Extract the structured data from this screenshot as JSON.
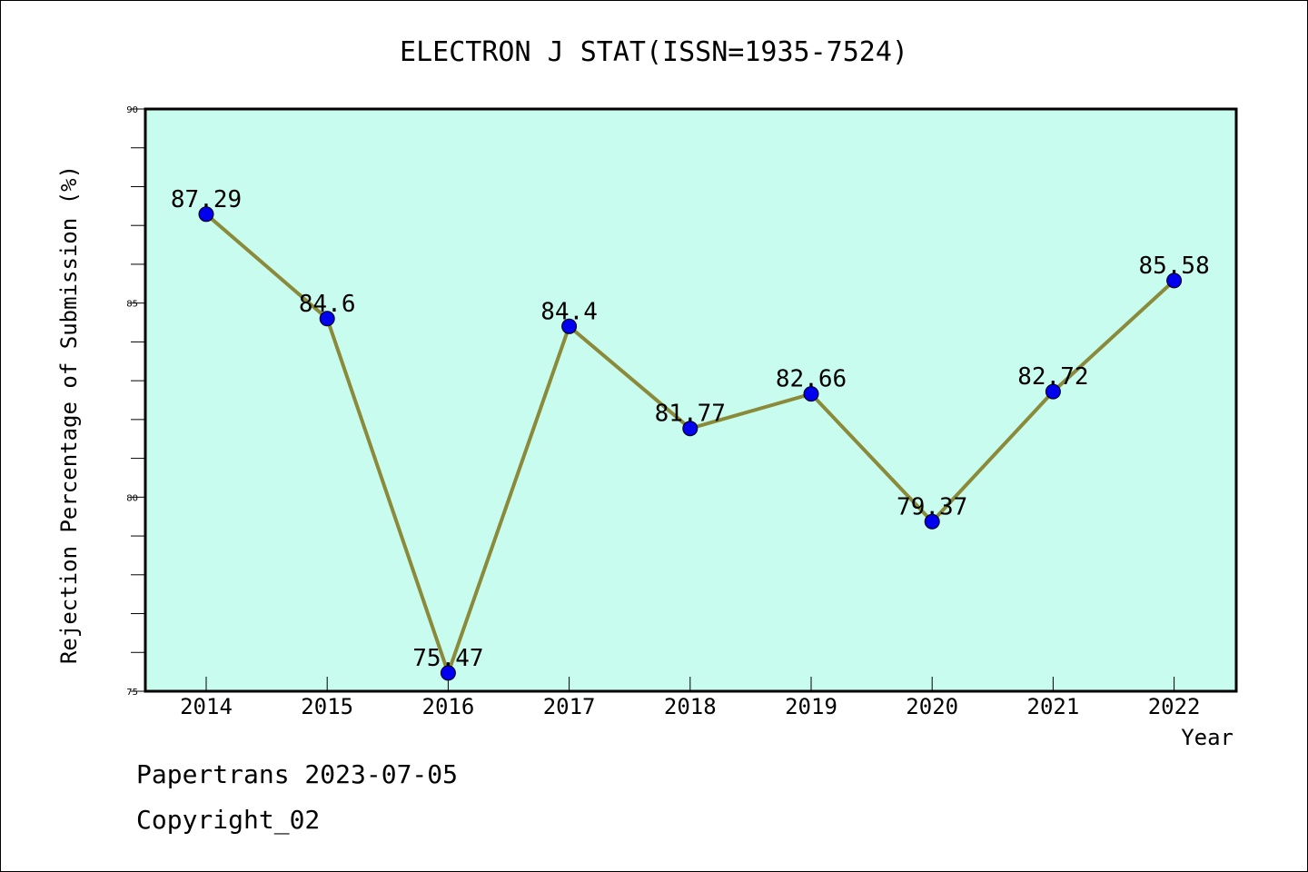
{
  "chart_data": {
    "type": "line",
    "title": "ELECTRON J STAT(ISSN=1935-7524)",
    "xlabel": "Year",
    "ylabel": "Rejection Percentage of Submission (%)",
    "categories": [
      "2014",
      "2015",
      "2016",
      "2017",
      "2018",
      "2019",
      "2020",
      "2021",
      "2022"
    ],
    "values": [
      87.29,
      84.6,
      75.47,
      84.4,
      81.77,
      82.66,
      79.37,
      82.72,
      85.58
    ],
    "labels": [
      "87.29",
      "84.6",
      "75.47",
      "84.4",
      "81.77",
      "82.66",
      "79.37",
      "82.72",
      "85.58"
    ],
    "ylim": [
      75,
      90
    ],
    "yticks": [
      "75",
      "80",
      "85",
      "90"
    ],
    "yticks_values": [
      75,
      80,
      85,
      90
    ],
    "grid": false,
    "colors": {
      "plot_background": "#c8fcee",
      "line": "#8b8a3a",
      "marker": "#0000ee"
    }
  },
  "footer": {
    "line1": "Papertrans 2023-07-05",
    "line2": "Copyright_02"
  }
}
